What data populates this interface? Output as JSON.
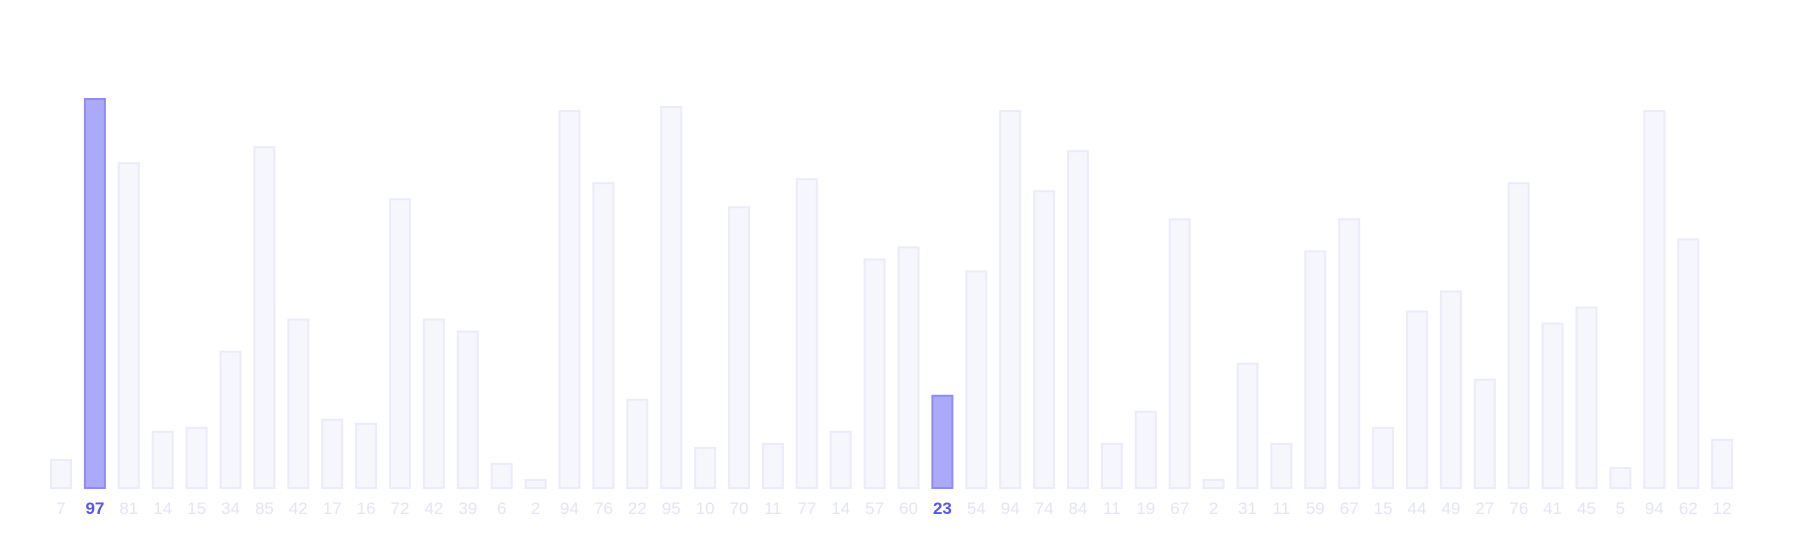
{
  "chart_data": {
    "type": "bar",
    "values": [
      7,
      97,
      81,
      14,
      15,
      34,
      85,
      42,
      17,
      16,
      72,
      42,
      39,
      6,
      2,
      94,
      76,
      22,
      95,
      10,
      70,
      11,
      77,
      14,
      57,
      60,
      23,
      54,
      94,
      74,
      84,
      11,
      19,
      67,
      2,
      31,
      11,
      59,
      67,
      15,
      44,
      49,
      27,
      76,
      41,
      45,
      5,
      94,
      62,
      12
    ],
    "highlighted_indices": [
      1,
      26
    ],
    "ylim": [
      0,
      97
    ],
    "grid": false,
    "colors": {
      "bar_fill": "#f6f6fd",
      "bar_stroke": "#ebebfb",
      "highlight_fill": "#aaaaf8",
      "highlight_stroke": "#8c8cf4",
      "label": "#e4e4f6",
      "highlight_label": "#5656ee"
    }
  }
}
